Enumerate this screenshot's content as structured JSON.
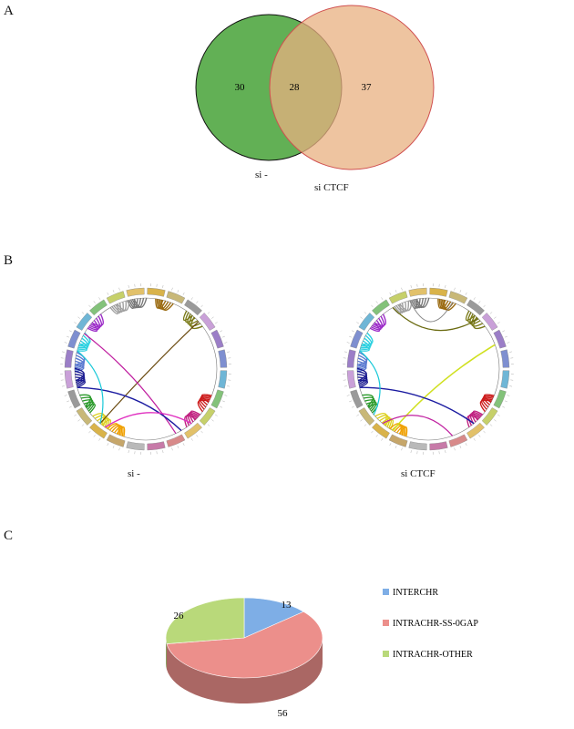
{
  "panels": {
    "a": "A",
    "b": "B",
    "c": "C"
  },
  "venn": {
    "left_only": "30",
    "both": "28",
    "right_only": "37",
    "left_label": "si -",
    "right_label": "si CTCF",
    "left_color": "#5aac4c",
    "right_color": "#e8b080"
  },
  "circos": {
    "left_label": "si -",
    "right_label": "si CTCF"
  },
  "chart_data": {
    "type": "pie",
    "categories": [
      "INTERCHR",
      "INTRACHR-SS-0GAP",
      "INTRACHR-OTHER"
    ],
    "values": [
      13,
      56,
      26
    ],
    "labels": [
      "13",
      "56",
      "26"
    ],
    "colors": [
      "#7eaee6",
      "#ec8f8b",
      "#b9d97a"
    ],
    "legend": "right"
  }
}
